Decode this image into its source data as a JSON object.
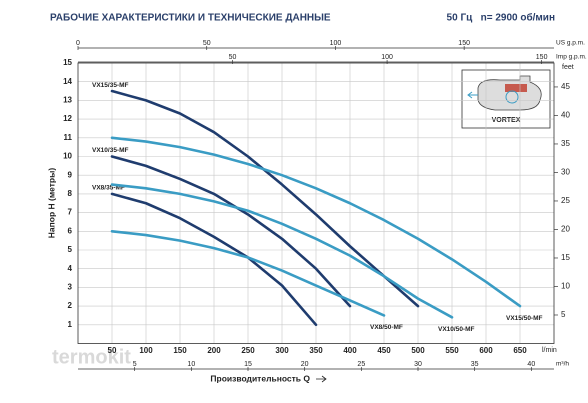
{
  "chart_data": {
    "type": "line",
    "title": "РАБОЧИЕ ХАРАКТЕРИСТИКИ И ТЕХНИЧЕСКИЕ ДАННЫЕ",
    "subtitle": "50 Гц   n= 2900 об/мин",
    "x_label": "Производительность Q",
    "y_label": "Напор H (метры)",
    "x_unit": "l/min",
    "xlim": [
      0,
      700
    ],
    "xticks": [
      50,
      100,
      150,
      200,
      250,
      300,
      350,
      400,
      450,
      500,
      550,
      600,
      650
    ],
    "ylim": [
      0,
      15
    ],
    "yticks": [
      1,
      2,
      3,
      4,
      5,
      6,
      7,
      8,
      9,
      10,
      11,
      12,
      13,
      14,
      15
    ],
    "grid": true,
    "secondary_axes": [
      {
        "label": "US g.p.m.",
        "side": "top",
        "lim": [
          0,
          184.9
        ],
        "ticks": [
          0,
          50,
          100,
          150
        ]
      },
      {
        "label": "Imp g.p.m.",
        "side": "top",
        "lim": [
          0,
          154
        ],
        "ticks": [
          50,
          100,
          150
        ]
      },
      {
        "label": "m³/h",
        "side": "bottom",
        "lim": [
          0,
          42
        ],
        "ticks": [
          5,
          10,
          15,
          20,
          25,
          30,
          35,
          40
        ]
      },
      {
        "label": "feet",
        "side": "right",
        "lim": [
          0,
          49.2
        ],
        "ticks": [
          5,
          10,
          15,
          20,
          25,
          30,
          35,
          40,
          45
        ]
      }
    ],
    "series": [
      {
        "name": "VX15/35-MF",
        "color": "#1f3c6e",
        "label_at": "start",
        "x": [
          50,
          100,
          150,
          200,
          250,
          300,
          350,
          400,
          450,
          500
        ],
        "values": [
          13.5,
          13.0,
          12.3,
          11.3,
          10.0,
          8.5,
          6.9,
          5.2,
          3.6,
          2.0
        ]
      },
      {
        "name": "VX10/35-MF",
        "color": "#1f3c6e",
        "label_at": "start",
        "x": [
          50,
          100,
          150,
          200,
          250,
          300,
          350,
          400
        ],
        "values": [
          10.0,
          9.5,
          8.8,
          8.0,
          6.9,
          5.6,
          4.0,
          2.0
        ]
      },
      {
        "name": "VX8/35-MF",
        "color": "#1f3c6e",
        "label_at": "start",
        "x": [
          50,
          100,
          150,
          200,
          250,
          300,
          350
        ],
        "values": [
          8.0,
          7.5,
          6.7,
          5.7,
          4.6,
          3.1,
          1.0
        ]
      },
      {
        "name": "VX15/50-MF",
        "color": "#3a9cc4",
        "label_at": "end",
        "x": [
          50,
          100,
          150,
          200,
          250,
          300,
          350,
          400,
          450,
          500,
          550,
          600,
          650
        ],
        "values": [
          11.0,
          10.8,
          10.5,
          10.1,
          9.6,
          9.0,
          8.3,
          7.5,
          6.6,
          5.6,
          4.5,
          3.3,
          2.0
        ]
      },
      {
        "name": "VX10/50-MF",
        "color": "#3a9cc4",
        "label_at": "end",
        "x": [
          50,
          100,
          150,
          200,
          250,
          300,
          350,
          400,
          450,
          500,
          550
        ],
        "values": [
          8.5,
          8.3,
          8.0,
          7.6,
          7.1,
          6.4,
          5.6,
          4.7,
          3.6,
          2.4,
          1.4
        ]
      },
      {
        "name": "VX8/50-MF",
        "color": "#3a9cc4",
        "label_at": "end",
        "x": [
          50,
          100,
          150,
          200,
          250,
          300,
          350,
          400,
          450
        ],
        "values": [
          6.0,
          5.8,
          5.5,
          5.1,
          4.6,
          3.9,
          3.1,
          2.3,
          1.5
        ]
      }
    ],
    "inset_label": "VORTEX",
    "watermark": "termokit"
  }
}
